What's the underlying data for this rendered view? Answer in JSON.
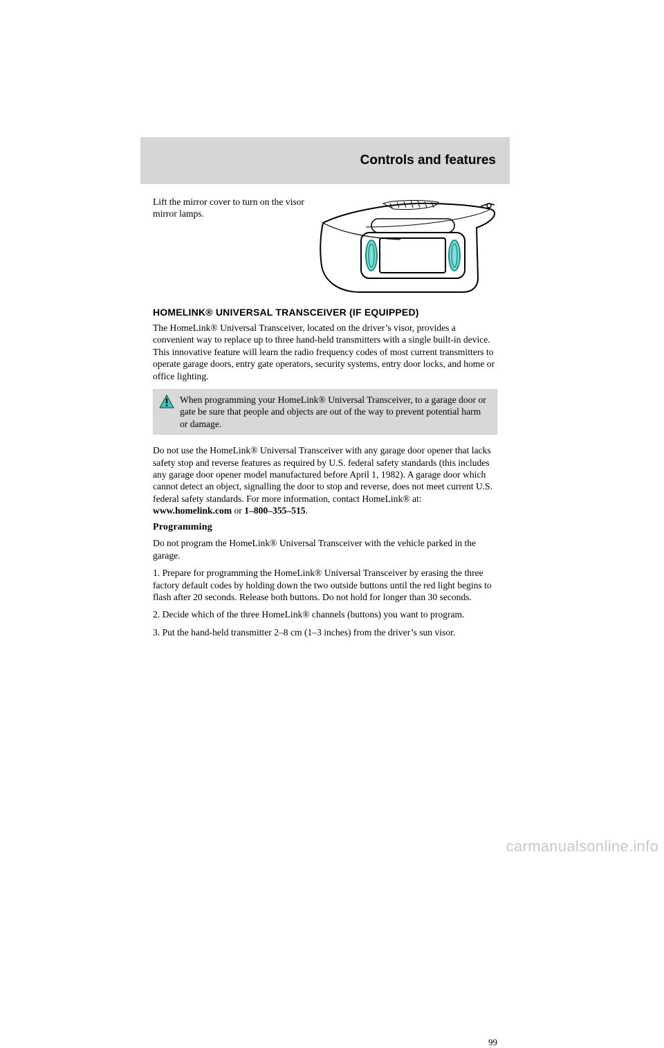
{
  "header": {
    "title": "Controls and features"
  },
  "intro": {
    "line1": "Lift the mirror cover to turn on the visor mirror lamps.",
    "line2_hidden": ""
  },
  "section": {
    "heading": "HOMELINK® UNIVERSAL TRANSCEIVER (IF EQUIPPED)",
    "p1": "The HomeLink® Universal Transceiver, located on the driver’s visor, provides a convenient way to replace up to three hand-held transmitters with a single built-in device. This innovative feature will learn the radio frequency codes of most current transmitters to operate garage doors, entry gate operators, security systems, entry door locks, and home or office lighting.",
    "warning": "When programming your HomeLink® Universal Transceiver, to a garage door or gate be sure that people and objects are out of the way to prevent potential harm or damage.",
    "p2": "Do not use the HomeLink® Universal Transceiver with any garage door opener that lacks safety stop and reverse features as required by U.S. federal safety standards (this includes any garage door opener model manufactured before April 1, 1982). A garage door which cannot detect an object, signalling the door to stop and reverse, does not meet current U.S. federal safety standards. For more information, contact HomeLink® at: <b>www.homelink.com</b> or <b>1–800–355–515</b>.",
    "programming_heading": "Programming",
    "p3": "Do not program the HomeLink® Universal Transceiver with the vehicle parked in the garage.",
    "step1": "1. Prepare for programming the HomeLink® Universal Transceiver by erasing the three factory default codes by holding down the two outside buttons until the red light begins to flash after 20 seconds. Release both buttons. Do not hold for longer than 30 seconds.",
    "step2": "2. Decide which of the three HomeLink® channels (buttons) you want to program.",
    "step3": "3. Put the hand-held transmitter 2–8 cm (1–3 inches) from the driver’s sun visor."
  },
  "page_number": "99",
  "watermark": "carmanualsonline.info",
  "colors": {
    "header_bg": "#d6d6d6",
    "warning_bg": "#d8d8d8",
    "mirror_lamp_fill": "#7fded9",
    "mirror_lamp_stroke": "#1b8e88",
    "warn_icon_fill": "#37c9c1",
    "warn_icon_exclaim": "#000000",
    "watermark_color": "rgba(0,0,0,0.22)"
  }
}
